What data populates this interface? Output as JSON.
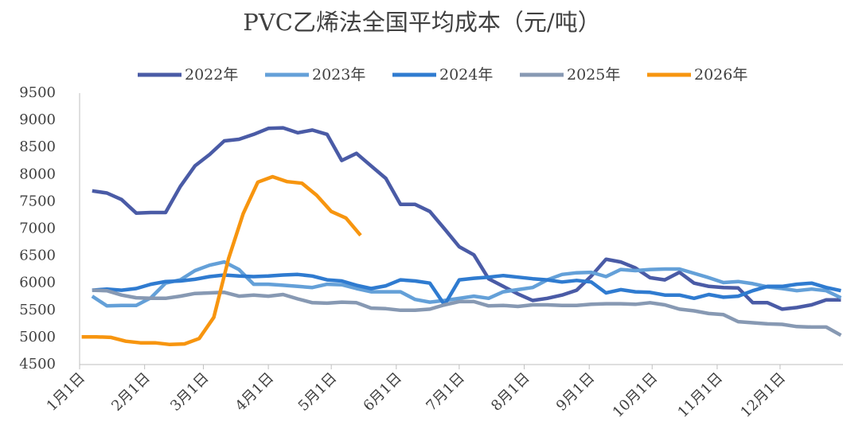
{
  "chart_data": {
    "type": "line",
    "title": "PVC乙烯法全国平均成本（元/吨）",
    "x": [
      7,
      14,
      21,
      28,
      35,
      42,
      49,
      56,
      63,
      70,
      77,
      84,
      91,
      98,
      105,
      112,
      119,
      126,
      133,
      140,
      147,
      154,
      161,
      168,
      175,
      182,
      189,
      196,
      203,
      210,
      217,
      224,
      231,
      238,
      245,
      252,
      259,
      266,
      273,
      280,
      287,
      294,
      301,
      308,
      315,
      322,
      329,
      336,
      343,
      350,
      357,
      364
    ],
    "xlim": [
      1,
      365
    ],
    "xticks": [
      {
        "value": 1,
        "label": "1月1日"
      },
      {
        "value": 32,
        "label": "2月1日"
      },
      {
        "value": 60,
        "label": "3月1日"
      },
      {
        "value": 91,
        "label": "4月1日"
      },
      {
        "value": 121,
        "label": "5月1日"
      },
      {
        "value": 152,
        "label": "6月1日"
      },
      {
        "value": 182,
        "label": "7月1日"
      },
      {
        "value": 213,
        "label": "8月1日"
      },
      {
        "value": 244,
        "label": "9月1日"
      },
      {
        "value": 274,
        "label": "10月1日"
      },
      {
        "value": 305,
        "label": "11月1日"
      },
      {
        "value": 335,
        "label": "12月1日"
      }
    ],
    "ylim": [
      4500,
      9500
    ],
    "yticks": [
      4500,
      5000,
      5500,
      6000,
      6500,
      7000,
      7500,
      8000,
      8500,
      9000,
      9500
    ],
    "legend": "top",
    "series": [
      {
        "name": "2022年",
        "color": "#4a5ba6",
        "values": [
          7700,
          7660,
          7540,
          7290,
          7300,
          7300,
          7780,
          8160,
          8370,
          8620,
          8650,
          8740,
          8850,
          8860,
          8770,
          8820,
          8740,
          8260,
          8390,
          8160,
          7930,
          7450,
          7450,
          7320,
          7000,
          6670,
          6520,
          6080,
          5940,
          5800,
          5680,
          5720,
          5780,
          5870,
          6130,
          6440,
          6390,
          6280,
          6100,
          6060,
          6200,
          6000,
          5940,
          5920,
          5910,
          5640,
          5640,
          5520,
          5550,
          5600,
          5690,
          5690
        ]
      },
      {
        "name": "2023年",
        "color": "#64a0d8",
        "values": [
          5760,
          5580,
          5590,
          5590,
          5730,
          6000,
          6060,
          6230,
          6330,
          6390,
          6250,
          5980,
          5980,
          5960,
          5940,
          5920,
          5980,
          5970,
          5900,
          5840,
          5840,
          5840,
          5700,
          5650,
          5680,
          5720,
          5760,
          5720,
          5840,
          5880,
          5920,
          6060,
          6160,
          6190,
          6200,
          6120,
          6250,
          6230,
          6250,
          6260,
          6260,
          6180,
          6100,
          6010,
          6030,
          5990,
          5930,
          5900,
          5860,
          5890,
          5860,
          5730
        ]
      },
      {
        "name": "2024年",
        "color": "#2f7bd0",
        "values": [
          5870,
          5890,
          5870,
          5900,
          5980,
          6030,
          6040,
          6070,
          6120,
          6150,
          6130,
          6120,
          6130,
          6150,
          6160,
          6130,
          6060,
          6040,
          5960,
          5900,
          5950,
          6060,
          6040,
          6000,
          5600,
          6060,
          6090,
          6110,
          6140,
          6110,
          6080,
          6060,
          6020,
          6050,
          6020,
          5820,
          5880,
          5840,
          5830,
          5780,
          5780,
          5720,
          5790,
          5740,
          5760,
          5860,
          5940,
          5940,
          5980,
          6000,
          5920,
          5860
        ]
      },
      {
        "name": "2025年",
        "color": "#8799b3",
        "values": [
          5870,
          5860,
          5780,
          5730,
          5720,
          5720,
          5760,
          5810,
          5820,
          5830,
          5760,
          5780,
          5760,
          5790,
          5710,
          5640,
          5630,
          5650,
          5640,
          5540,
          5530,
          5500,
          5500,
          5520,
          5600,
          5660,
          5660,
          5580,
          5590,
          5570,
          5600,
          5600,
          5590,
          5590,
          5610,
          5620,
          5620,
          5610,
          5640,
          5600,
          5520,
          5490,
          5440,
          5420,
          5290,
          5270,
          5250,
          5240,
          5200,
          5190,
          5190,
          5040
        ]
      },
      {
        "name": "2026年",
        "color": "#f7950f",
        "x": [
          2,
          9,
          16,
          23,
          30,
          37,
          44,
          51,
          58,
          65,
          72,
          79,
          86,
          93,
          100,
          107,
          114,
          121,
          128,
          135
        ],
        "values": [
          5010,
          5010,
          5000,
          4930,
          4900,
          4900,
          4870,
          4880,
          4980,
          5370,
          6450,
          7280,
          7860,
          7960,
          7870,
          7840,
          7620,
          7320,
          7200,
          6880
        ]
      }
    ]
  }
}
